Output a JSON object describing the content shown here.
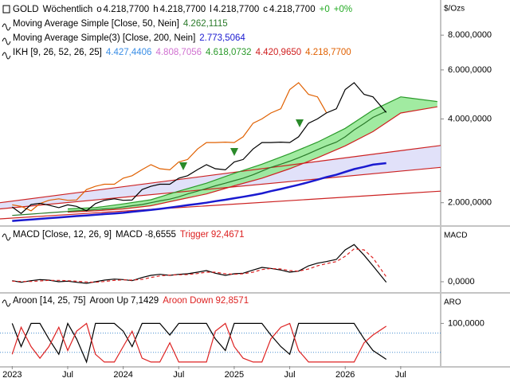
{
  "chart_data": [
    {
      "type": "line",
      "log": true,
      "title": "GOLD",
      "interval": "Wöchentlich",
      "quote": [
        {
          "label": "o",
          "value": "4.218,7700"
        },
        {
          "label": "h",
          "value": "4.218,7700"
        },
        {
          "label": "l",
          "value": "4.218,7700"
        },
        {
          "label": "c",
          "value": "4.218,7700"
        }
      ],
      "change": "+0",
      "change_pct": "+0%",
      "change_color": "#22aa22",
      "axis_title": "$/Ozs",
      "xlim": [
        2022.89,
        2026.86
      ],
      "ylim": [
        1660,
        10700
      ],
      "yticks": [
        {
          "value": 2000,
          "label": "2.000,0000"
        },
        {
          "value": 4000,
          "label": "4.000,0000"
        },
        {
          "value": 6000,
          "label": "6.000,0000"
        },
        {
          "value": 8000,
          "label": "8.000,0000"
        }
      ],
      "x": [
        2023,
        2023.08,
        2023.17,
        2023.25,
        2023.33,
        2023.42,
        2023.5,
        2023.58,
        2023.67,
        2023.75,
        2023.83,
        2023.92,
        2024,
        2024.08,
        2024.17,
        2024.25,
        2024.33,
        2024.42,
        2024.5,
        2024.58,
        2024.67,
        2024.75,
        2024.83,
        2024.92,
        2025,
        2025.08,
        2025.17,
        2025.25,
        2025.33,
        2025.42,
        2025.5,
        2025.58,
        2025.67,
        2025.75,
        2025.83,
        2025.92,
        2026,
        2026.08,
        2026.17,
        2026.25,
        2026.37
      ],
      "ikh": {
        "name": "IKH [9, 26, 52, 26, 25]",
        "readings": [
          "4.427,4406",
          "4.808,7056",
          "4.618,0732",
          "4.420,9650",
          "4.218,7700"
        ],
        "colors": [
          "#3a8ee6",
          "#d070d0",
          "#2a9a2a",
          "#d02020",
          "#e06000"
        ]
      },
      "series": [
        {
          "color": "#cc2222",
          "fill": "#dcdcf8",
          "x": [
            2022.89,
            2026.86
          ],
          "values": [
            2000,
            3210
          ]
        },
        {
          "color": "#cc2222",
          "x": [
            2022.89,
            2026.86
          ],
          "values": [
            1900,
            2680
          ]
        },
        {
          "color": "#cc2222",
          "x": [
            2022.89,
            2026.86
          ],
          "values": [
            1750,
            2200
          ]
        },
        {
          "color": "#2a9a2a",
          "fill": "#90e890",
          "x": [
            2023.5,
            2023.75,
            2024,
            2024.25,
            2024.5,
            2024.75,
            2025,
            2025.25,
            2025.5,
            2025.75,
            2026,
            2026.25,
            2026.5,
            2026.83
          ],
          "values": [
            1900,
            1920,
            1980,
            2050,
            2200,
            2350,
            2550,
            2750,
            3000,
            3300,
            3700,
            4300,
            4800,
            4618.0732
          ]
        },
        {
          "color": "#d02020",
          "x": [
            2023.5,
            2023.75,
            2024,
            2024.25,
            2024.5,
            2024.75,
            2025,
            2025.25,
            2025.5,
            2025.75,
            2026,
            2026.25,
            2026.5,
            2026.83
          ],
          "values": [
            1850,
            1870,
            1900,
            1950,
            2050,
            2150,
            2300,
            2450,
            2650,
            2900,
            3200,
            3600,
            4200,
            4420.965
          ]
        },
        {
          "color": "#e06000",
          "values": [
            1965,
            1940,
            1870,
            1985,
            2040,
            2065,
            2040,
            2045,
            2230,
            2290,
            2330,
            2330,
            2450,
            2500,
            2630,
            2740,
            2650,
            2625,
            2800,
            2860,
            3120,
            3290,
            3290,
            3300,
            3290,
            3450,
            3860,
            4000,
            4200,
            4350,
            5100,
            5400,
            4900,
            4800,
            4218.77,
            null,
            null,
            null,
            null,
            null,
            null
          ]
        },
        {
          "name": "Moving Average Simple(3) [Close, 200, Nein]",
          "legend_value": "2.773,5064",
          "color": "#1a1ad0",
          "width": 2.5,
          "values": [
            1720,
            1730,
            1740,
            1750,
            1760,
            1770,
            1780,
            1790,
            1800,
            1810,
            1820,
            1830,
            1840,
            1855,
            1870,
            1885,
            1900,
            1920,
            1940,
            1960,
            1980,
            2000,
            2025,
            2050,
            2075,
            2100,
            2130,
            2160,
            2200,
            2240,
            2280,
            2320,
            2370,
            2420,
            2470,
            2520,
            2580,
            2640,
            2690,
            2740,
            2773.5064
          ]
        },
        {
          "name": "Moving Average Simple [Close, 50, Nein]",
          "legend_value": "4.262,1115",
          "color": "#2a7a2a",
          "values": [
            1800,
            1810,
            1820,
            1830,
            1840,
            1850,
            1860,
            1870,
            1880,
            1890,
            1900,
            1910,
            1930,
            1950,
            1970,
            2000,
            2030,
            2060,
            2100,
            2150,
            2200,
            2250,
            2300,
            2350,
            2400,
            2450,
            2520,
            2600,
            2680,
            2750,
            2820,
            2900,
            3000,
            3100,
            3200,
            3300,
            3450,
            3650,
            3850,
            4050,
            4262.1115
          ]
        },
        {
          "color": "#000000",
          "values": [
            1930,
            1830,
            1970,
            1990,
            1960,
            1920,
            1965,
            1940,
            1870,
            1985,
            2040,
            2065,
            2040,
            2045,
            2230,
            2290,
            2330,
            2330,
            2450,
            2500,
            2630,
            2740,
            2650,
            2625,
            2800,
            2860,
            3120,
            3290,
            3290,
            3300,
            3290,
            3450,
            3860,
            4000,
            4200,
            4350,
            5100,
            5400,
            4900,
            4800,
            4218.77
          ]
        }
      ]
    },
    {
      "type": "line",
      "name": "MACD [Close, 12, 26, 9]",
      "axis_title": "MACD",
      "xlim": [
        2022.89,
        2026.86
      ],
      "ylim": [
        -195,
        1035
      ],
      "yticks": [
        {
          "value": 0,
          "label": "0,0000"
        }
      ],
      "x": [
        2023,
        2023.08,
        2023.17,
        2023.25,
        2023.33,
        2023.42,
        2023.5,
        2023.58,
        2023.67,
        2023.75,
        2023.83,
        2023.92,
        2024,
        2024.08,
        2024.17,
        2024.25,
        2024.33,
        2024.42,
        2024.5,
        2024.58,
        2024.67,
        2024.75,
        2024.83,
        2024.92,
        2025,
        2025.08,
        2025.17,
        2025.25,
        2025.33,
        2025.42,
        2025.5,
        2025.58,
        2025.67,
        2025.75,
        2025.83,
        2025.92,
        2026,
        2026.08,
        2026.17,
        2026.25,
        2026.37
      ],
      "series": [
        {
          "name": "MACD",
          "legend_value": "-8,6555",
          "color": "#000000",
          "values": [
            20,
            -10,
            20,
            40,
            30,
            0,
            10,
            -10,
            -30,
            0,
            30,
            50,
            40,
            20,
            80,
            120,
            140,
            120,
            140,
            150,
            180,
            210,
            160,
            120,
            150,
            160,
            220,
            270,
            250,
            220,
            180,
            200,
            300,
            350,
            380,
            420,
            600,
            700,
            500,
            300,
            -8.6555
          ]
        },
        {
          "name": "Trigger",
          "legend_value": "92,4671",
          "color": "#dd2222",
          "dash": true,
          "values": [
            10,
            5,
            5,
            15,
            25,
            25,
            20,
            10,
            -5,
            -10,
            5,
            25,
            35,
            30,
            45,
            80,
            110,
            125,
            130,
            135,
            155,
            180,
            180,
            150,
            140,
            150,
            180,
            230,
            250,
            240,
            210,
            200,
            240,
            300,
            340,
            380,
            480,
            620,
            600,
            450,
            92.4671
          ]
        }
      ]
    },
    {
      "type": "line",
      "name": "Aroon [14, 25, 75]",
      "axis_title": "ARO",
      "xlim": [
        2022.89,
        2026.86
      ],
      "ylim": [
        -10.4,
        177
      ],
      "yticks": [
        {
          "value": 100,
          "label": "100,0000"
        }
      ],
      "levels": [
        25,
        75
      ],
      "level_color": "#4a90d0",
      "xticks": [
        2023,
        {
          "value": 2023.5,
          "label": "Jul"
        },
        2024,
        {
          "value": 2024.5,
          "label": "Jul"
        },
        2025,
        {
          "value": 2025.5,
          "label": "Jul"
        },
        2026,
        {
          "value": 2026.5,
          "label": "Jul"
        }
      ],
      "x": [
        2023,
        2023.08,
        2023.17,
        2023.25,
        2023.33,
        2023.42,
        2023.5,
        2023.58,
        2023.67,
        2023.75,
        2023.83,
        2023.92,
        2024,
        2024.08,
        2024.17,
        2024.25,
        2024.33,
        2024.42,
        2024.5,
        2024.58,
        2024.67,
        2024.75,
        2024.83,
        2024.92,
        2025,
        2025.08,
        2025.17,
        2025.25,
        2025.33,
        2025.42,
        2025.5,
        2025.58,
        2025.67,
        2025.75,
        2025.83,
        2025.92,
        2026,
        2026.08,
        2026.17,
        2026.25,
        2026.37
      ],
      "series": [
        {
          "name": "Aroon Up",
          "legend_value": "7,1429",
          "color": "#000000",
          "values": [
            100,
            40,
            100,
            100,
            60,
            20,
            100,
            60,
            0,
            100,
            100,
            100,
            80,
            40,
            100,
            100,
            100,
            70,
            100,
            100,
            100,
            100,
            60,
            30,
            100,
            100,
            100,
            100,
            70,
            40,
            20,
            100,
            100,
            100,
            100,
            100,
            100,
            100,
            60,
            30,
            7.1429
          ]
        },
        {
          "name": "Aroon Down",
          "legend_value": "92,8571",
          "color": "#dd2222",
          "values": [
            20,
            90,
            40,
            10,
            40,
            90,
            30,
            80,
            100,
            20,
            0,
            0,
            40,
            80,
            10,
            0,
            0,
            50,
            0,
            0,
            0,
            0,
            80,
            100,
            40,
            10,
            0,
            0,
            60,
            90,
            100,
            30,
            0,
            0,
            0,
            0,
            0,
            0,
            50,
            70,
            92.8571
          ]
        }
      ]
    }
  ]
}
